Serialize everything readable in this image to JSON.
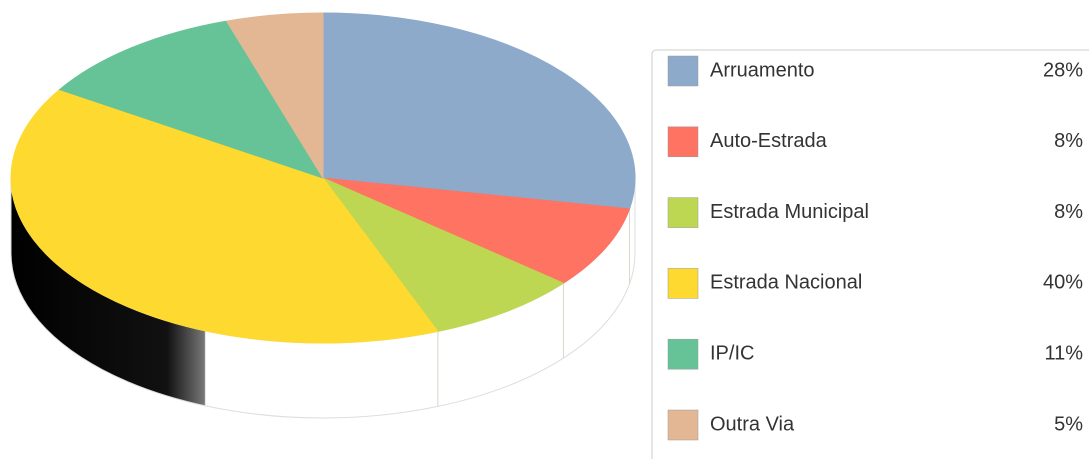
{
  "chart_data": {
    "type": "pie",
    "categories": [
      "Arruamento",
      "Auto-Estrada",
      "Estrada Municipal",
      "Estrada Nacional",
      "IP/IC",
      "Outra Via"
    ],
    "values": [
      28,
      8,
      8,
      40,
      11,
      5
    ],
    "value_labels": [
      "28%",
      "8%",
      "8%",
      "40%",
      "11%",
      "5%"
    ],
    "colors": [
      "#8eaacb",
      "#fe7362",
      "#bdd752",
      "#fed930",
      "#66c397",
      "#e4b794"
    ],
    "legend": "right"
  }
}
